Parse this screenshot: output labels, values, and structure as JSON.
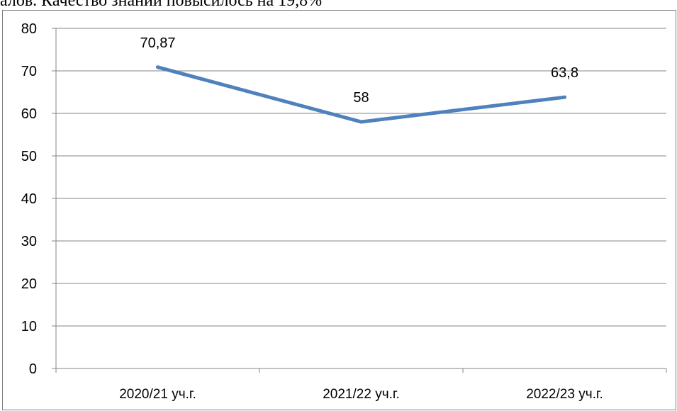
{
  "header": {
    "text": "алов. Качество знаний повысилось на 19,8%"
  },
  "chart_data": {
    "type": "line",
    "categories": [
      "2020/21 уч.г.",
      "2021/22 уч.г.",
      "2022/23 уч.г."
    ],
    "series": [
      {
        "values": [
          70.87,
          58,
          63.8
        ],
        "labels": [
          "70,87",
          "58",
          "63,8"
        ],
        "color": "#4f81bd"
      }
    ],
    "ylim": [
      0,
      80
    ],
    "yticks": [
      0,
      10,
      20,
      30,
      40,
      50,
      60,
      70,
      80
    ],
    "grid": true,
    "legend": "none"
  }
}
